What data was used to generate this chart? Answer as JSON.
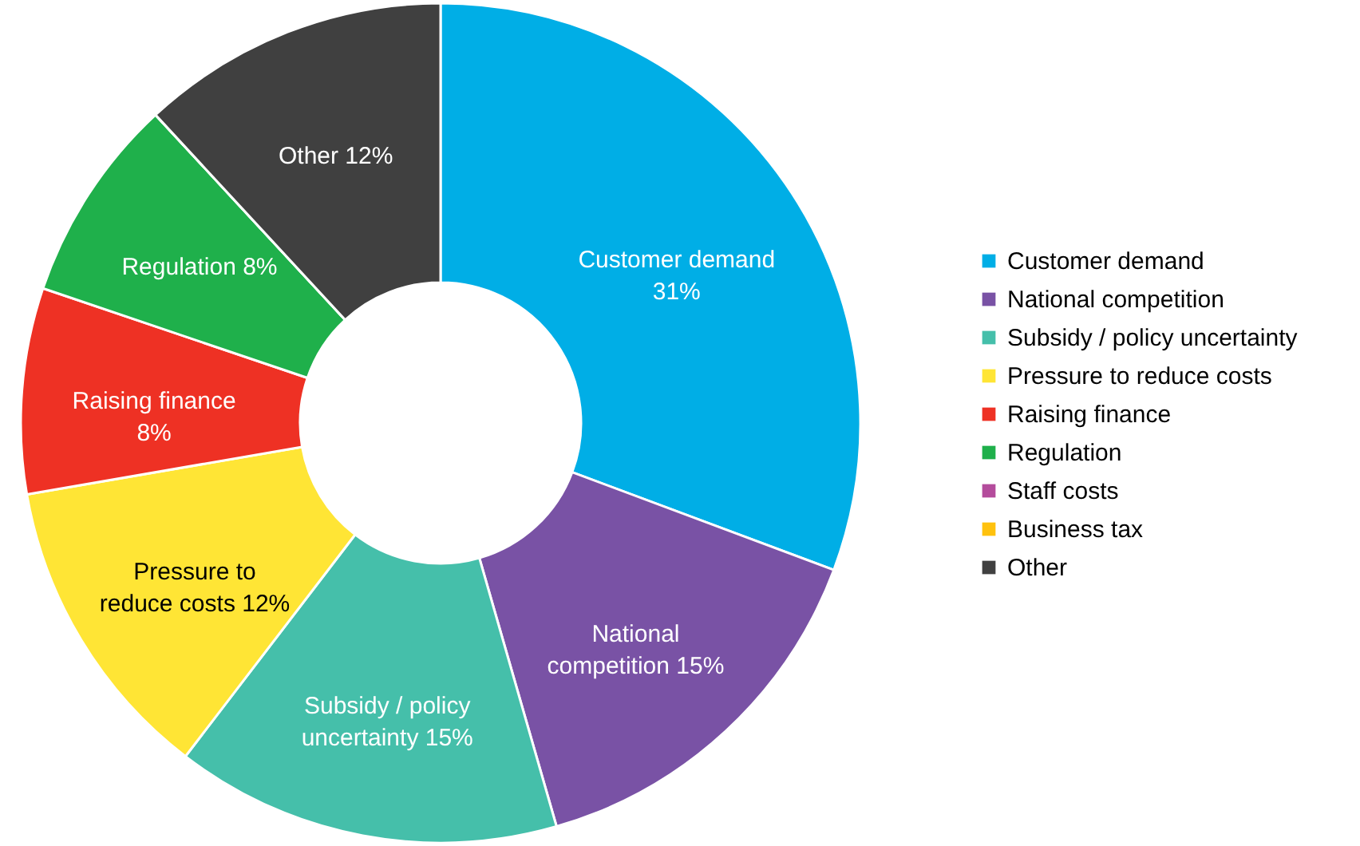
{
  "chart_data": {
    "type": "donut",
    "categories": [
      "Customer demand",
      "National competition",
      "Subsidy / policy uncertainty",
      "Pressure to reduce costs",
      "Raising finance",
      "Regulation",
      "Staff costs",
      "Business tax",
      "Other"
    ],
    "values": [
      31,
      15,
      15,
      12,
      8,
      8,
      0,
      0,
      12
    ],
    "colors": [
      "#00aee6",
      "#7952a5",
      "#45bfaa",
      "#ffe535",
      "#ee3124",
      "#1fb04b",
      "#b44c9c",
      "#ffc20e",
      "#404040"
    ],
    "value_labels": [
      "Customer demand 31%",
      "National competition 15%",
      "Subsidy / policy uncertainty 15%",
      "Pressure to reduce costs 12%",
      "Raising finance 8%",
      "Regulation 8%",
      null,
      null,
      "Other 12%"
    ],
    "legend": "right"
  }
}
